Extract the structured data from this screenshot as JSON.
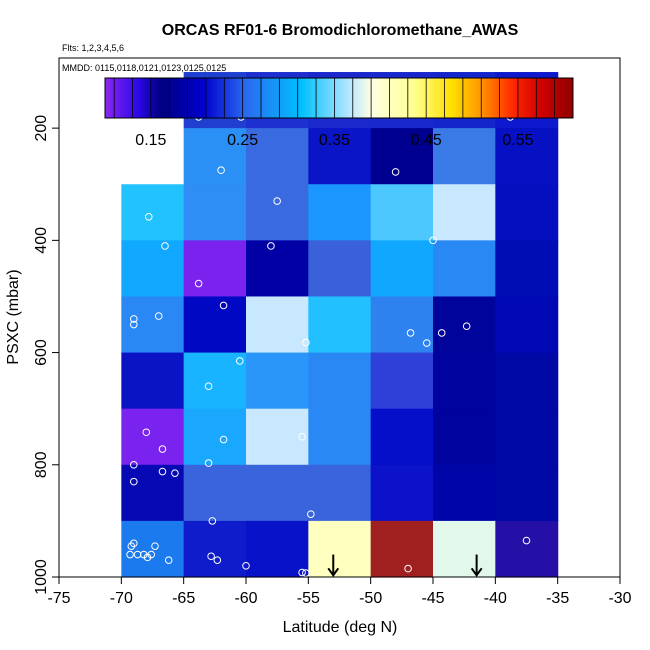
{
  "chart_data": {
    "type": "heatmap",
    "title": "ORCAS RF01-6 Bromodichloromethane_AWAS",
    "subtitle_flights": "Flts: 1,2,3,4,5,6",
    "subtitle_dates": "MMDD: 0115,0118,0121,0123,0125,0125",
    "xlabel": "Latitude (deg N)",
    "ylabel": "PSXC (mbar)",
    "xlim": [
      -75,
      -30
    ],
    "ylim": [
      1000,
      75
    ],
    "x_ticks": [
      -75,
      -70,
      -65,
      -60,
      -55,
      -50,
      -45,
      -40,
      -35,
      -30
    ],
    "y_ticks": [
      200,
      400,
      600,
      800,
      1000
    ],
    "x_bin_edges": [
      -70,
      -65,
      -60,
      -55,
      -50,
      -45,
      -40,
      -35
    ],
    "y_bin_edges": [
      100,
      200,
      300,
      400,
      500,
      600,
      700,
      800,
      900,
      1000
    ],
    "colorbar": {
      "range": [
        0.1,
        0.61
      ],
      "ticks": [
        0.15,
        0.25,
        0.35,
        0.45,
        0.55
      ],
      "tick_labels": [
        "0.15",
        "0.25",
        "0.35",
        "0.45",
        "0.55"
      ]
    },
    "cell_colors": [
      [
        null,
        "#1f3fd0",
        "#1e2fd0",
        "#1a28cc",
        "#1828cc",
        "#1525cc",
        "#0e18cc"
      ],
      [
        null,
        "#2a90f5",
        "#3a6ae0",
        "#0b15c8",
        "#000090",
        "#3a7ae6",
        "#0810c4"
      ],
      [
        "#22c2ff",
        "#2e8ef5",
        "#3a6ae0",
        "#1c96ff",
        "#4cc8ff",
        "#c8e8ff",
        "#050fc0"
      ],
      [
        "#11a8ff",
        "#7a22ee",
        "#0000a4",
        "#3a60da",
        "#10a8ff",
        "#2a88f5",
        "#000cb4"
      ],
      [
        "#2a88f5",
        "#0008c4",
        "#c8e8ff",
        "#22c0ff",
        "#2e82f0",
        "#00049a",
        "#0008b4"
      ],
      [
        "#0b14c4",
        "#19b4ff",
        "#2a96fa",
        "#2a88f5",
        "#2f40d8",
        "#00039e",
        "#0008a6"
      ],
      [
        "#7a22ee",
        "#1aa8ff",
        "#c8e8ff",
        "#2a88f5",
        "#050ec8",
        "#00039e",
        "#0008a6"
      ],
      [
        "#0609b4",
        "#3a64dc",
        "#3a64dc",
        "#3a64dc",
        "#0c12c8",
        "#0005a8",
        "#0008a6"
      ],
      [
        "#1b7aee",
        "#0e1ccc",
        "#0812c8",
        "#ffffc0",
        "#a01f1f",
        "#e2f8ea",
        "#2410a6"
      ]
    ],
    "points": [
      [
        -63.8,
        180
      ],
      [
        -60.4,
        180
      ],
      [
        -38.8,
        180
      ],
      [
        -62,
        275
      ],
      [
        -48,
        278
      ],
      [
        -57.5,
        330
      ],
      [
        -67.8,
        358
      ],
      [
        -66.5,
        410
      ],
      [
        -58,
        410
      ],
      [
        -45,
        400
      ],
      [
        -63.8,
        477
      ],
      [
        -61.8,
        516
      ],
      [
        -69,
        540
      ],
      [
        -69,
        550
      ],
      [
        -67,
        535
      ],
      [
        -55.2,
        582
      ],
      [
        -46.8,
        565
      ],
      [
        -45.5,
        583
      ],
      [
        -44.3,
        565
      ],
      [
        -42.3,
        553
      ],
      [
        -60.5,
        615
      ],
      [
        -63,
        660
      ],
      [
        -68,
        742
      ],
      [
        -66.7,
        772
      ],
      [
        -61.8,
        755
      ],
      [
        -55.5,
        750
      ],
      [
        -69,
        800
      ],
      [
        -63,
        797
      ],
      [
        -66.7,
        812
      ],
      [
        -65.7,
        815
      ],
      [
        -69,
        830
      ],
      [
        -54.8,
        888
      ],
      [
        -62.7,
        900
      ],
      [
        -69.2,
        945
      ],
      [
        -69,
        940
      ],
      [
        -67.3,
        945
      ],
      [
        -69.3,
        960
      ],
      [
        -68.7,
        960
      ],
      [
        -68.2,
        960
      ],
      [
        -67.9,
        965
      ],
      [
        -67.6,
        960
      ],
      [
        -66.2,
        970
      ],
      [
        -62.8,
        963
      ],
      [
        -62.3,
        970
      ],
      [
        -60,
        980
      ],
      [
        -55.5,
        992
      ],
      [
        -55.2,
        993
      ],
      [
        -47,
        985
      ],
      [
        -37.5,
        935
      ]
    ],
    "arrows_lat": [
      -53,
      -41.5
    ]
  }
}
